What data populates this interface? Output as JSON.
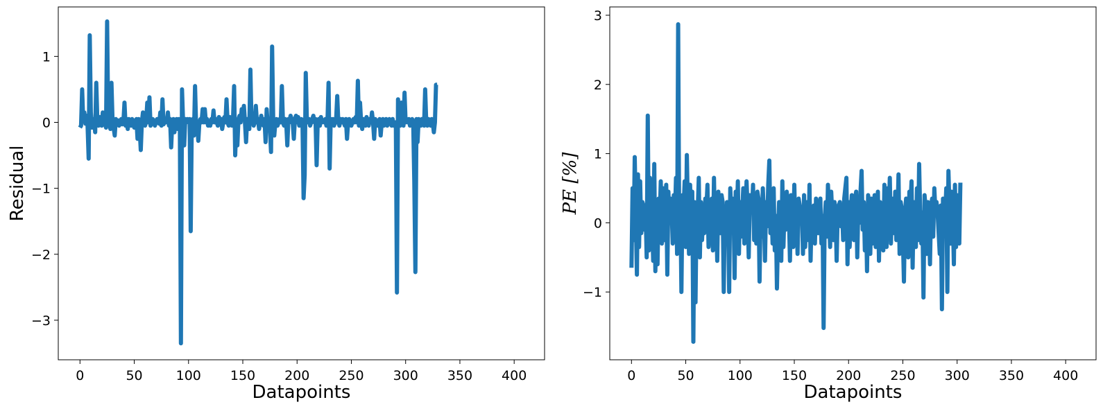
{
  "chart_data": [
    {
      "type": "line",
      "xlabel": "Datapoints",
      "ylabel": "Residual",
      "xlim": [
        -20,
        428
      ],
      "ylim": [
        -3.6,
        1.75
      ],
      "xticks": [
        0,
        50,
        100,
        150,
        200,
        250,
        300,
        350,
        400
      ],
      "yticks": [
        1,
        0,
        -1,
        -2,
        -3
      ],
      "ytick_labels": [
        "1",
        "0",
        "−1",
        "−2",
        "−3"
      ],
      "color": "#1f77b4",
      "x_start": 0,
      "x_step": 1,
      "values": [
        -0.08,
        -0.05,
        0.5,
        0.02,
        0.15,
        -0.02,
        0.1,
        -0.05,
        -0.55,
        1.32,
        0.15,
        -0.08,
        -0.02,
        0.05,
        -0.15,
        0.6,
        0.03,
        -0.05,
        0.08,
        0.0,
        -0.05,
        0.15,
        0.05,
        -0.02,
        -0.08,
        1.53,
        0.0,
        0.05,
        -0.1,
        0.6,
        0.02,
        -0.08,
        -0.2,
        0.05,
        0.0,
        0.03,
        -0.05,
        0.0,
        0.05,
        -0.03,
        0.0,
        0.3,
        -0.05,
        0.05,
        -0.1,
        0.05,
        0.0,
        -0.05,
        0.05,
        0.02,
        -0.08,
        0.0,
        0.05,
        -0.25,
        0.05,
        -0.1,
        -0.42,
        0.0,
        0.15,
        0.0,
        -0.05,
        0.02,
        0.3,
        0.0,
        0.38,
        -0.05,
        0.0,
        0.05,
        0.0,
        -0.05,
        0.0,
        0.05,
        0.0,
        -0.02,
        0.15,
        -0.05,
        0.35,
        -0.03,
        0.0,
        0.05,
        0.0,
        0.15,
        -0.05,
        0.05,
        -0.38,
        0.0,
        0.05,
        -0.15,
        0.0,
        0.05,
        -0.1,
        0.05,
        0.0,
        -3.35,
        0.5,
        0.0,
        -0.35,
        0.05,
        0.0,
        0.05,
        0.0,
        0.05,
        -1.65,
        0.0,
        0.05,
        -0.2,
        0.55,
        -0.05,
        0.0,
        -0.28,
        0.0,
        0.05,
        0.0,
        0.2,
        0.0,
        0.2,
        0.0,
        0.05,
        -0.05,
        0.0,
        -0.05,
        0.05,
        0.0,
        0.18,
        0.0,
        0.05,
        0.0,
        -0.05,
        0.08,
        0.0,
        0.05,
        -0.1,
        0.0,
        0.08,
        0.0,
        0.35,
        0.0,
        -0.05,
        0.08,
        0.0,
        -0.05,
        0.05,
        0.55,
        -0.5,
        0.0,
        -0.35,
        0.05,
        0.1,
        0.0,
        0.2,
        0.05,
        0.25,
        0.0,
        -0.3,
        0.05,
        0.0,
        -0.1,
        0.8,
        0.0,
        0.05,
        -0.05,
        0.0,
        0.25,
        0.0,
        0.05,
        -0.1,
        0.0,
        0.1,
        0.0,
        -0.05,
        0.05,
        -0.3,
        0.2,
        -0.05,
        0.05,
        -0.1,
        -0.45,
        1.15,
        0.05,
        -0.2,
        0.0,
        0.05,
        -0.05,
        0.0,
        0.05,
        0.0,
        0.55,
        0.0,
        -0.05,
        0.05,
        0.0,
        -0.35,
        0.05,
        0.0,
        0.1,
        0.05,
        0.0,
        -0.25,
        0.05,
        0.1,
        0.0,
        0.08,
        -0.05,
        0.0,
        0.05,
        0.0,
        -1.15,
        -0.8,
        0.75,
        0.05,
        0.0,
        0.05,
        -0.05,
        0.0,
        0.05,
        0.1,
        0.0,
        0.05,
        -0.65,
        0.0,
        0.05,
        -0.05,
        0.08,
        0.0,
        0.02,
        0.0,
        0.05,
        -0.05,
        0.0,
        0.6,
        -0.7,
        0.05,
        0.0,
        0.05,
        -0.05,
        0.0,
        0.05,
        0.4,
        0.0,
        -0.05,
        0.05,
        0.0,
        0.05,
        0.0,
        -0.05,
        0.05,
        -0.25,
        0.0,
        0.05,
        0.0,
        -0.05,
        0.0,
        0.05,
        0.0,
        0.08,
        0.0,
        0.63,
        -0.05,
        0.3,
        0.0,
        -0.1,
        0.05,
        0.0,
        -0.05,
        0.08,
        0.0,
        -0.05,
        0.05,
        0.0,
        0.15,
        0.0,
        -0.25,
        0.05,
        0.0,
        -0.05,
        0.0,
        0.05,
        -0.2,
        0.0,
        0.05,
        -0.05,
        0.0,
        0.05,
        -0.05,
        0.0,
        0.05,
        0.0,
        -0.05,
        0.05,
        -0.05,
        0.0,
        0.0,
        -2.58,
        0.35,
        0.0,
        -0.05,
        0.3,
        0.0,
        -0.05,
        0.45,
        0.0,
        0.05,
        0.0,
        0.05,
        -0.05,
        0.0,
        0.05,
        0.0,
        -0.9,
        -2.27,
        0.05,
        -0.3,
        0.05,
        0.0,
        -0.05,
        0.05,
        0.0,
        -0.05,
        0.5,
        0.0,
        -0.05,
        0.05,
        0.0,
        -0.05,
        0.05,
        0.0,
        -0.15,
        0.0,
        0.57,
        0.57
      ]
    },
    {
      "type": "line",
      "xlabel": "Datapoints",
      "ylabel": "PE [%]",
      "xlim": [
        -20,
        428
      ],
      "ylim": [
        -1.98,
        3.12
      ],
      "xticks": [
        0,
        50,
        100,
        150,
        200,
        250,
        300,
        350,
        400
      ],
      "yticks": [
        3,
        2,
        1,
        0,
        -1
      ],
      "ytick_labels": [
        "3",
        "2",
        "1",
        "0",
        "−1"
      ],
      "color": "#1f77b4",
      "x_start": 0,
      "x_step": 1,
      "values": [
        -0.65,
        0.5,
        -0.25,
        0.95,
        0.1,
        -0.75,
        0.7,
        -0.35,
        0.6,
        -0.15,
        0.3,
        0.25,
        -0.1,
        0.2,
        -0.5,
        1.55,
        -0.4,
        0.65,
        -0.2,
        0.05,
        -0.55,
        0.85,
        -0.7,
        0.15,
        -0.6,
        0.35,
        0.05,
        0.6,
        -0.3,
        0.5,
        -0.25,
        0.3,
        0.55,
        -0.75,
        0.45,
        0.0,
        0.35,
        0.2,
        -0.3,
        0.4,
        0.05,
        0.65,
        -0.45,
        2.87,
        -0.2,
        0.35,
        -1.0,
        0.4,
        0.2,
        0.6,
        -0.35,
        0.98,
        0.15,
        -0.45,
        0.55,
        -0.05,
        0.45,
        -1.72,
        0.3,
        -1.15,
        0.25,
        0.15,
        0.65,
        -0.5,
        0.3,
        -0.25,
        0.1,
        -0.15,
        0.35,
        0.2,
        0.55,
        -0.35,
        0.15,
        0.0,
        0.35,
        -0.4,
        0.65,
        -0.2,
        0.1,
        -0.55,
        0.45,
        0.2,
        -0.15,
        0.4,
        0.3,
        -1.0,
        0.2,
        0.0,
        0.3,
        0.1,
        -1.0,
        0.5,
        0.15,
        0.35,
        0.25,
        -0.8,
        0.45,
        0.05,
        0.6,
        -0.45,
        0.3,
        -0.2,
        0.15,
        0.5,
        -0.3,
        0.05,
        0.6,
        0.2,
        -0.5,
        0.4,
        0.25,
        0.15,
        0.55,
        -0.25,
        0.1,
        -0.3,
        0.45,
        0.35,
        -0.85,
        0.2,
        -0.2,
        0.5,
        0.1,
        -0.55,
        0.3,
        -0.05,
        0.55,
        0.9,
        -0.15,
        0.2,
        -0.3,
        0.5,
        -0.4,
        0.1,
        -0.95,
        -0.15,
        0.3,
        0.1,
        -0.55,
        0.6,
        -0.35,
        0.25,
        -0.1,
        0.45,
        0.3,
        0.15,
        -0.55,
        0.4,
        0.05,
        -0.35,
        0.55,
        -0.1,
        0.2,
        -0.45,
        0.35,
        0.25,
        0.0,
        0.2,
        -0.45,
        0.4,
        -0.35,
        0.1,
        0.3,
        -0.25,
        0.55,
        -0.55,
        0.15,
        0.05,
        0.25,
        -0.3,
        0.35,
        0.1,
        -0.15,
        0.2,
        0.35,
        -0.3,
        0.1,
        -1.52,
        0.05,
        0.3,
        -0.2,
        0.55,
        0.15,
        -0.35,
        0.45,
        0.1,
        -0.25,
        0.3,
        0.2,
        -0.55,
        0.15,
        0.25,
        0.3,
        -0.05,
        0.2,
        -0.25,
        0.35,
        0.5,
        0.65,
        -0.6,
        0.3,
        -0.35,
        0.15,
        0.4,
        0.0,
        -0.25,
        0.35,
        0.45,
        -0.5,
        0.25,
        0.0,
        0.45,
        0.75,
        -0.1,
        0.3,
        -0.4,
        0.2,
        -0.7,
        0.4,
        0.25,
        -0.45,
        0.35,
        -0.3,
        0.15,
        0.4,
        -0.35,
        0.05,
        0.45,
        -0.55,
        0.3,
        0.1,
        0.25,
        -0.4,
        0.55,
        0.2,
        -0.35,
        0.5,
        0.15,
        0.65,
        -0.3,
        0.2,
        0.35,
        -0.15,
        0.45,
        -0.25,
        0.05,
        0.7,
        -0.45,
        0.3,
        0.2,
        -0.2,
        -0.85,
        0.15,
        0.35,
        0.1,
        -0.5,
        0.45,
        0.25,
        0.6,
        -0.65,
        0.3,
        0.15,
        -0.35,
        0.5,
        -0.25,
        0.85,
        0.1,
        -0.3,
        0.15,
        -1.08,
        0.4,
        0.2,
        -0.45,
        0.3,
        0.05,
        -0.6,
        0.25,
        0.35,
        -0.2,
        0.5,
        0.15,
        0.3,
        0.15,
        -0.15,
        -0.45,
        0.25,
        -1.25,
        0.35,
        -0.15,
        0.1,
        0.5,
        -1.0,
        0.75,
        0.2,
        -0.3,
        0.45,
        0.1,
        -0.6,
        0.55,
        -0.35,
        0.4,
        0.05,
        -0.3,
        0.58
      ]
    }
  ]
}
